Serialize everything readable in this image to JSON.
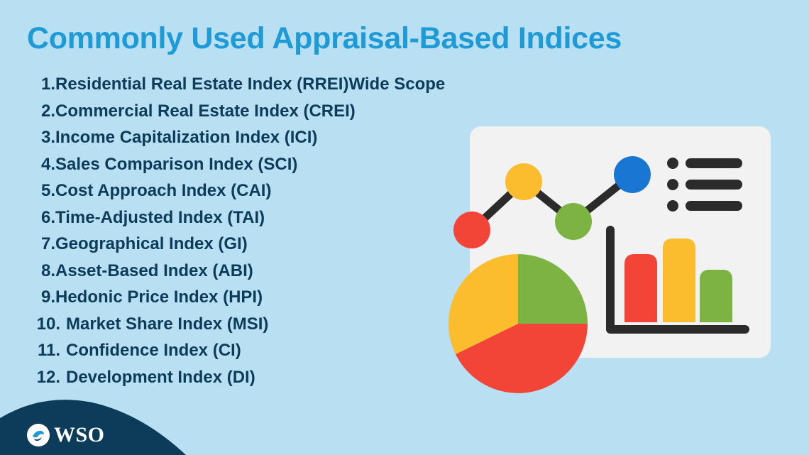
{
  "title": "Commonly Used Appraisal-Based Indices",
  "items": [
    {
      "num": "1.",
      "text": "Residential Real Estate Index (RREI)Wide Scope"
    },
    {
      "num": "2.",
      "text": "Commercial Real Estate Index (CREI)"
    },
    {
      "num": "3.",
      "text": "Income Capitalization Index (ICI)"
    },
    {
      "num": "4.",
      "text": "Sales Comparison Index (SCI)"
    },
    {
      "num": "5.",
      "text": "Cost Approach Index (CAI)"
    },
    {
      "num": "6.",
      "text": "Time-Adjusted Index (TAI)"
    },
    {
      "num": "7.",
      "text": "Geographical Index (GI)"
    },
    {
      "num": "8.",
      "text": "Asset-Based Index (ABI)"
    },
    {
      "num": "9.",
      "text": "Hedonic Price Index (HPI)"
    },
    {
      "num": "10.",
      "text": "Market Share Index (MSI)"
    },
    {
      "num": "11.",
      "text": "Confidence Index (CI)"
    },
    {
      "num": "12.",
      "text": "Development Index (DI)"
    }
  ],
  "logo": {
    "text": "WSO",
    "icon": "wso-bird-icon"
  },
  "illustration": {
    "icons": [
      "line-chart-icon",
      "list-icon",
      "bar-chart-icon",
      "pie-chart-icon"
    ],
    "colors": {
      "background": "#b8dff2",
      "title": "#1e9ad6",
      "list_text": "#0d3b5a",
      "panel": "#f2f2f2",
      "red": "#f24537",
      "yellow": "#fbbd2e",
      "green": "#7cb342",
      "blue": "#1976d2",
      "dark": "#2b2b2b",
      "logo_bg": "#0d3b5a"
    }
  }
}
